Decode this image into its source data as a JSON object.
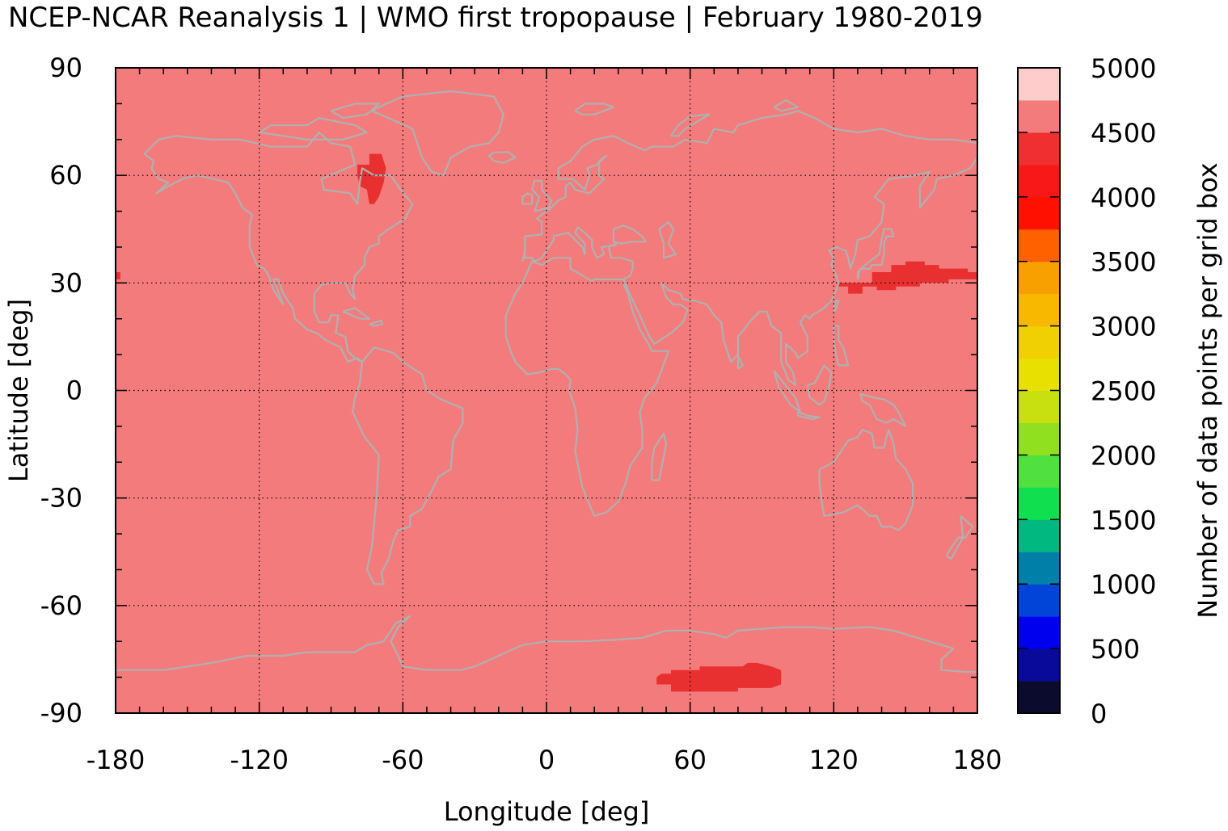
{
  "title": "NCEP-NCAR Reanalysis 1 | WMO first tropopause | February 1980-2019",
  "chart_data": {
    "type": "heatmap",
    "title": "NCEP-NCAR Reanalysis 1 | WMO first tropopause | February 1980-2019",
    "xlabel": "Longitude [deg]",
    "ylabel": "Latitude [deg]",
    "colorbar_label": "Number of data points per grid box",
    "xlim": [
      -180,
      180
    ],
    "ylim": [
      -90,
      90
    ],
    "x_ticks": [
      -180,
      -120,
      -60,
      0,
      60,
      120,
      180
    ],
    "x_tick_labels": [
      "-180",
      "-120",
      "-60",
      "0",
      "60",
      "120",
      "180"
    ],
    "y_ticks": [
      90,
      60,
      30,
      0,
      -30,
      -60,
      -90
    ],
    "y_tick_labels": [
      "90",
      "60",
      "30",
      "0",
      "-30",
      "-60",
      "-90"
    ],
    "colorbar_ticks": [
      0,
      500,
      1000,
      1500,
      2000,
      2500,
      3000,
      3500,
      4000,
      4500,
      5000
    ],
    "colorbar_tick_labels": [
      "0",
      "500",
      "1000",
      "1500",
      "2000",
      "2500",
      "3000",
      "3500",
      "4000",
      "4500",
      "5000"
    ],
    "colorbar_range": [
      0,
      5000
    ],
    "colorbar_colors": [
      "#0b0b2e",
      "#0a0a9a",
      "#0000ee",
      "#0044d8",
      "#0080a8",
      "#00b880",
      "#10e050",
      "#50e040",
      "#90e020",
      "#c8e010",
      "#e8e000",
      "#f0d000",
      "#f8b800",
      "#f8a000",
      "#ff6000",
      "#ff1000",
      "#f81818",
      "#f03030",
      "#f47b7b",
      "#ffcccc"
    ],
    "background_value": 4640,
    "background_color": "#f47b7b",
    "grid": true,
    "patches": [
      {
        "region": "Hudson Bay",
        "lon": [
          -80,
          -66
        ],
        "lat": [
          52,
          66
        ],
        "value": 4400,
        "color": "#e83030"
      },
      {
        "region": "Northwest Pacific",
        "lon": [
          122,
          180
        ],
        "lat": [
          27,
          36
        ],
        "value": 4400,
        "color": "#e83030"
      },
      {
        "region": "East Antarctica",
        "lon": [
          45,
          98
        ],
        "lat": [
          -84,
          -76
        ],
        "value": 4400,
        "color": "#e83030"
      },
      {
        "region": "Dateline 30N",
        "lon": [
          -180,
          -178
        ],
        "lat": [
          31,
          33
        ],
        "value": 4400,
        "color": "#e83030"
      }
    ],
    "coastline_color": "#b0b0b0"
  }
}
